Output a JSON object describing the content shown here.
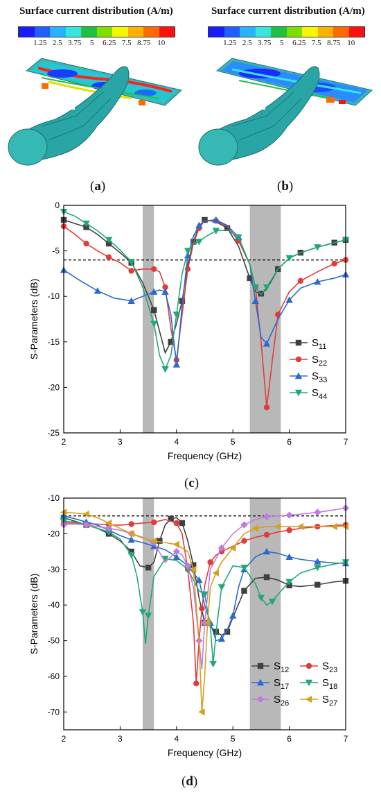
{
  "panel_a": {
    "colorbar_title": "Surface current distribution (A/m)",
    "colorbar_ticks": [
      "1.25",
      "2.5",
      "3.75",
      "5",
      "6.25",
      "7.5",
      "8.75",
      "10"
    ],
    "label_open": "(",
    "label_letter": "a",
    "label_close": ")"
  },
  "panel_b": {
    "colorbar_title": "Surface current distribution (A/m)",
    "colorbar_ticks": [
      "1.25",
      "2.5",
      "3.75",
      "5",
      "6.25",
      "7.5",
      "8.75",
      "10"
    ],
    "label_open": "(",
    "label_letter": "b",
    "label_close": ")"
  },
  "colorbar_colors": [
    "#1a1aff",
    "#1f5fff",
    "#27b3ff",
    "#35e6e0",
    "#20c040",
    "#7ee000",
    "#f6f600",
    "#ffb000",
    "#ff6a00",
    "#ff1010"
  ],
  "chart_c": {
    "label_open": "(",
    "label_letter": "c",
    "label_close": ")"
  },
  "chart_d": {
    "label_open": "(",
    "label_letter": "d",
    "label_close": ")"
  },
  "chart_data": [
    {
      "type": "line",
      "xlabel": "Frequency (GHz)",
      "ylabel": "S-Parameters (dB)",
      "xlim": [
        2,
        7
      ],
      "ylim": [
        -25,
        0
      ],
      "xticks": [
        2,
        3,
        4,
        5,
        6,
        7
      ],
      "yticks": [
        0,
        -5,
        -10,
        -15,
        -20,
        -25
      ],
      "reference_line": -6,
      "shaded_bands": [
        [
          3.4,
          3.6
        ],
        [
          5.3,
          5.85
        ]
      ],
      "legend_position": "lower-right",
      "series": [
        {
          "name": "S11",
          "base": "S",
          "sub": "11",
          "color": "#404040",
          "marker": "square",
          "x": [
            2.0,
            2.2,
            2.4,
            2.6,
            2.8,
            3.0,
            3.2,
            3.4,
            3.6,
            3.8,
            3.9,
            4.0,
            4.1,
            4.2,
            4.3,
            4.4,
            4.5,
            4.7,
            4.9,
            5.1,
            5.3,
            5.4,
            5.5,
            5.6,
            5.8,
            6.0,
            6.2,
            6.5,
            6.8,
            7.0
          ],
          "y": [
            -1.6,
            -2.0,
            -2.4,
            -3.2,
            -4.2,
            -5.2,
            -6.3,
            -8.5,
            -11.5,
            -16.2,
            -15.0,
            -13.0,
            -10.5,
            -6.5,
            -4.0,
            -2.3,
            -1.6,
            -1.8,
            -2.5,
            -4.5,
            -8.0,
            -9.5,
            -9.7,
            -9.2,
            -7.0,
            -5.8,
            -5.2,
            -4.6,
            -4.1,
            -3.8
          ]
        },
        {
          "name": "S22",
          "base": "S",
          "sub": "22",
          "color": "#e03c3c",
          "marker": "circle",
          "x": [
            2.0,
            2.2,
            2.4,
            2.6,
            2.8,
            3.0,
            3.2,
            3.4,
            3.6,
            3.7,
            3.8,
            3.9,
            4.0,
            4.1,
            4.2,
            4.3,
            4.4,
            4.5,
            4.7,
            4.9,
            5.1,
            5.3,
            5.4,
            5.5,
            5.6,
            5.7,
            5.8,
            6.0,
            6.2,
            6.5,
            6.8,
            7.0
          ],
          "y": [
            -2.3,
            -3.2,
            -4.2,
            -5.0,
            -5.7,
            -6.3,
            -7.2,
            -7.0,
            -7.0,
            -7.3,
            -9.0,
            -13.5,
            -17.0,
            -12.0,
            -7.0,
            -4.2,
            -2.5,
            -1.7,
            -1.7,
            -2.3,
            -3.9,
            -6.5,
            -9.0,
            -15.0,
            -22.2,
            -17.0,
            -12.0,
            -9.5,
            -8.3,
            -7.3,
            -6.4,
            -6.0
          ]
        },
        {
          "name": "S33",
          "base": "S",
          "sub": "33",
          "color": "#2a6ad0",
          "marker": "triangle",
          "x": [
            2.0,
            2.3,
            2.6,
            2.9,
            3.2,
            3.4,
            3.6,
            3.7,
            3.8,
            3.9,
            4.0,
            4.1,
            4.2,
            4.3,
            4.4,
            4.5,
            4.7,
            4.9,
            5.1,
            5.3,
            5.4,
            5.5,
            5.6,
            5.8,
            6.0,
            6.2,
            6.5,
            6.8,
            7.0
          ],
          "y": [
            -7.1,
            -8.3,
            -9.4,
            -10.2,
            -10.5,
            -10.0,
            -9.5,
            -9.3,
            -9.5,
            -12.0,
            -17.5,
            -11.0,
            -5.5,
            -3.4,
            -2.2,
            -1.7,
            -1.6,
            -2.2,
            -3.5,
            -6.5,
            -10.5,
            -14.5,
            -15.2,
            -12.5,
            -10.4,
            -9.1,
            -8.4,
            -8.0,
            -7.6
          ]
        },
        {
          "name": "S44",
          "base": "S",
          "sub": "44",
          "color": "#20a878",
          "marker": "triangle-down",
          "x": [
            2.0,
            2.2,
            2.4,
            2.6,
            2.8,
            3.0,
            3.2,
            3.4,
            3.6,
            3.7,
            3.8,
            3.9,
            4.0,
            4.1,
            4.2,
            4.3,
            4.4,
            4.5,
            4.7,
            4.9,
            5.1,
            5.3,
            5.4,
            5.5,
            5.6,
            5.8,
            6.0,
            6.2,
            6.5,
            6.8,
            7.0
          ],
          "y": [
            -0.7,
            -1.2,
            -2.0,
            -2.8,
            -3.8,
            -4.9,
            -6.2,
            -9.0,
            -13.0,
            -16.5,
            -18.0,
            -16.5,
            -12.0,
            -7.5,
            -5.0,
            -4.2,
            -4.0,
            -3.5,
            -2.8,
            -2.7,
            -3.5,
            -6.5,
            -9.0,
            -9.8,
            -9.0,
            -7.0,
            -5.8,
            -5.2,
            -4.6,
            -4.1,
            -3.8
          ]
        }
      ]
    },
    {
      "type": "line",
      "xlabel": "Frequency (GHz)",
      "ylabel": "S-Parameters (dB)",
      "xlim": [
        2,
        7
      ],
      "ylim": [
        -75,
        -10
      ],
      "xticks": [
        2,
        3,
        4,
        5,
        6,
        7
      ],
      "yticks": [
        -10,
        -20,
        -30,
        -40,
        -50,
        -60,
        -70
      ],
      "reference_line": -15,
      "shaded_bands": [
        [
          3.4,
          3.6
        ],
        [
          5.3,
          5.85
        ]
      ],
      "legend_position": "lower-right",
      "series": [
        {
          "name": "S12",
          "base": "S",
          "sub": "12",
          "color": "#404040",
          "marker": "square",
          "x": [
            2.0,
            2.2,
            2.4,
            2.6,
            2.8,
            3.0,
            3.2,
            3.35,
            3.5,
            3.6,
            3.7,
            3.8,
            3.9,
            4.0,
            4.1,
            4.2,
            4.3,
            4.4,
            4.5,
            4.6,
            4.7,
            4.8,
            4.9,
            5.0,
            5.2,
            5.4,
            5.6,
            5.8,
            6.0,
            6.2,
            6.5,
            6.8,
            7.0
          ],
          "y": [
            -15.5,
            -16.5,
            -17.5,
            -18.5,
            -20.0,
            -22.0,
            -25.0,
            -29.0,
            -29.5,
            -28.0,
            -22.0,
            -17.5,
            -15.8,
            -15.5,
            -17.0,
            -22.0,
            -28.8,
            -38.0,
            -45.0,
            -46.0,
            -47.5,
            -48.5,
            -47.5,
            -43.5,
            -36.0,
            -32.5,
            -32.2,
            -33.0,
            -34.5,
            -34.8,
            -34.3,
            -33.5,
            -33.2
          ]
        },
        {
          "name": "S23",
          "base": "S",
          "sub": "23",
          "color": "#e03c3c",
          "marker": "circle",
          "x": [
            2.0,
            2.2,
            2.4,
            2.6,
            2.8,
            3.0,
            3.2,
            3.4,
            3.6,
            3.8,
            4.0,
            4.1,
            4.2,
            4.3,
            4.35,
            4.4,
            4.45,
            4.5,
            4.6,
            4.7,
            4.8,
            5.0,
            5.2,
            5.4,
            5.6,
            5.8,
            6.0,
            6.2,
            6.5,
            6.8,
            7.0
          ],
          "y": [
            -17.0,
            -17.0,
            -17.2,
            -17.3,
            -17.5,
            -17.6,
            -17.3,
            -17.0,
            -16.8,
            -16.0,
            -17.0,
            -20.0,
            -30.0,
            -45.0,
            -62.0,
            -50.0,
            -41.0,
            -34.5,
            -28.0,
            -26.0,
            -25.0,
            -23.5,
            -22.0,
            -21.0,
            -20.3,
            -19.5,
            -19.0,
            -18.5,
            -18.0,
            -17.7,
            -17.5
          ]
        },
        {
          "name": "S17",
          "base": "S",
          "sub": "17",
          "color": "#2a6ad0",
          "marker": "triangle",
          "x": [
            2.0,
            2.2,
            2.4,
            2.6,
            2.8,
            3.0,
            3.2,
            3.4,
            3.6,
            3.8,
            4.0,
            4.2,
            4.4,
            4.5,
            4.6,
            4.7,
            4.8,
            4.9,
            5.0,
            5.1,
            5.2,
            5.4,
            5.6,
            5.8,
            6.0,
            6.2,
            6.5,
            6.8,
            7.0
          ],
          "y": [
            -15.0,
            -15.8,
            -16.7,
            -17.6,
            -19.0,
            -20.5,
            -21.7,
            -22.5,
            -23.5,
            -24.5,
            -26.5,
            -29.0,
            -33.0,
            -40.0,
            -45.0,
            -50.0,
            -49.5,
            -47.0,
            -43.0,
            -35.0,
            -30.0,
            -26.5,
            -25.0,
            -25.5,
            -26.5,
            -27.2,
            -27.8,
            -28.2,
            -28.3
          ]
        },
        {
          "name": "S18",
          "base": "S",
          "sub": "18",
          "color": "#20a878",
          "marker": "triangle-down",
          "x": [
            2.0,
            2.2,
            2.4,
            2.6,
            2.8,
            3.0,
            3.2,
            3.3,
            3.4,
            3.45,
            3.5,
            3.6,
            3.8,
            4.0,
            4.2,
            4.4,
            4.5,
            4.6,
            4.65,
            4.7,
            4.8,
            5.0,
            5.2,
            5.4,
            5.5,
            5.6,
            5.7,
            5.8,
            6.0,
            6.2,
            6.5,
            6.8,
            7.0
          ],
          "y": [
            -16.5,
            -16.7,
            -17.5,
            -18.5,
            -19.5,
            -21.5,
            -26.0,
            -32.0,
            -42.0,
            -51.0,
            -43.0,
            -32.0,
            -27.0,
            -27.5,
            -30.0,
            -36.0,
            -37.0,
            -46.0,
            -56.5,
            -48.0,
            -35.0,
            -29.0,
            -29.5,
            -34.0,
            -38.0,
            -40.0,
            -39.0,
            -37.0,
            -33.5,
            -31.0,
            -29.5,
            -28.5,
            -28.0
          ]
        },
        {
          "name": "S26",
          "base": "S",
          "sub": "26",
          "color": "#c07ae0",
          "marker": "diamond",
          "x": [
            2.0,
            2.2,
            2.4,
            2.6,
            2.8,
            3.0,
            3.2,
            3.4,
            3.6,
            3.8,
            4.0,
            4.1,
            4.2,
            4.3,
            4.4,
            4.45,
            4.5,
            4.6,
            4.8,
            5.0,
            5.2,
            5.4,
            5.6,
            5.8,
            6.0,
            6.2,
            6.5,
            6.8,
            7.0
          ],
          "y": [
            -17.5,
            -17.3,
            -17.5,
            -18.0,
            -18.5,
            -19.0,
            -20.0,
            -21.0,
            -22.5,
            -28.0,
            -25.0,
            -26.0,
            -29.0,
            -35.0,
            -50.0,
            -58.0,
            -45.0,
            -30.0,
            -24.0,
            -20.0,
            -17.5,
            -16.0,
            -15.2,
            -15.0,
            -14.8,
            -14.5,
            -14.0,
            -13.3,
            -12.8
          ]
        },
        {
          "name": "S27",
          "base": "S",
          "sub": "27",
          "color": "#d4a020",
          "marker": "triangle-left",
          "x": [
            2.0,
            2.2,
            2.4,
            2.6,
            2.8,
            3.0,
            3.2,
            3.4,
            3.6,
            3.8,
            4.0,
            4.2,
            4.3,
            4.4,
            4.45,
            4.5,
            4.55,
            4.6,
            4.7,
            4.8,
            5.0,
            5.2,
            5.4,
            5.6,
            5.8,
            6.0,
            6.2,
            6.5,
            6.8,
            7.0
          ],
          "y": [
            -14.0,
            -14.2,
            -14.5,
            -15.5,
            -17.0,
            -18.5,
            -20.0,
            -21.2,
            -22.0,
            -22.5,
            -23.0,
            -25.0,
            -30.0,
            -50.0,
            -70.0,
            -60.0,
            -45.0,
            -35.0,
            -31.0,
            -28.0,
            -24.0,
            -20.0,
            -18.5,
            -18.0,
            -18.0,
            -18.0,
            -18.0,
            -18.0,
            -18.0,
            -18.0
          ]
        }
      ]
    }
  ]
}
